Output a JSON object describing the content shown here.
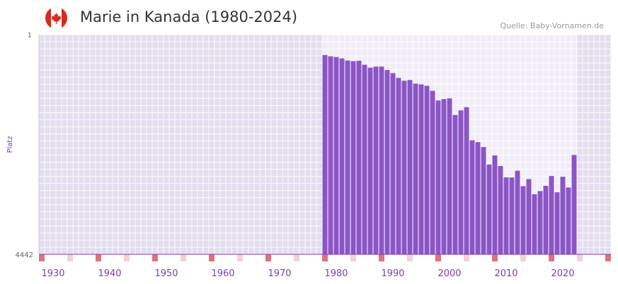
{
  "header": {
    "title": "Marie in Kanada (1980-2024)",
    "source": "Quelle: Baby-Vornamen.de"
  },
  "colors": {
    "bar": "#8b55c6",
    "band_dark": "#e3deef",
    "band_light": "#f1edf8",
    "axis": "#7a3fb0",
    "tick_label": "#7a3fb0",
    "decade_marker": "#e0717c",
    "half_decade_marker": "#f5d0d6",
    "flag_red": "#d52b1e"
  },
  "chart_data": {
    "type": "bar",
    "title": "Marie in Kanada (1980-2024)",
    "xlabel": "",
    "ylabel": "Platz",
    "y_inverted": true,
    "ylim": [
      1,
      4442
    ],
    "y_tick_labels": [
      "1",
      "4442"
    ],
    "xlim": [
      1928,
      2028
    ],
    "x_tick_labels": [
      "1930",
      "1940",
      "1950",
      "1960",
      "1970",
      "1980",
      "1990",
      "2000",
      "2010",
      "2020"
    ],
    "x_tick_values": [
      1930,
      1940,
      1950,
      1960,
      1970,
      1980,
      1990,
      2000,
      2010,
      2020
    ],
    "highlight_range": [
      1978,
      2023
    ],
    "series": [
      {
        "name": "Marie",
        "x": [
          1978,
          1979,
          1980,
          1981,
          1982,
          1983,
          1984,
          1985,
          1986,
          1987,
          1988,
          1989,
          1990,
          1991,
          1992,
          1993,
          1994,
          1995,
          1996,
          1997,
          1998,
          1999,
          2000,
          2001,
          2002,
          2003,
          2004,
          2005,
          2006,
          2007,
          2008,
          2009,
          2010,
          2011,
          2012,
          2013,
          2014,
          2015,
          2016,
          2017,
          2018,
          2019,
          2020,
          2021,
          2022
        ],
        "values": [
          414,
          439,
          454,
          482,
          524,
          538,
          530,
          610,
          669,
          647,
          647,
          717,
          779,
          875,
          934,
          919,
          992,
          1007,
          1035,
          1138,
          1333,
          1303,
          1290,
          1626,
          1533,
          1468,
          2138,
          2175,
          2273,
          2627,
          2442,
          2657,
          2886,
          2889,
          2752,
          3065,
          2921,
          3227,
          3162,
          3058,
          2859,
          3188,
          2874,
          3091,
          2434
        ]
      }
    ]
  }
}
